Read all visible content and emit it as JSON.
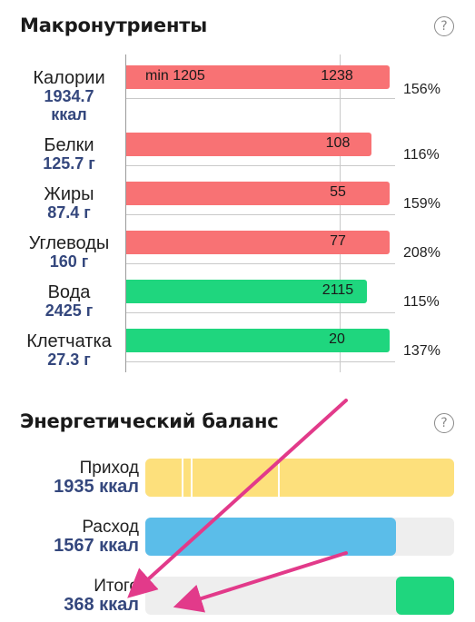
{
  "macros": {
    "title": "Макронутриенты",
    "help_icon": "?",
    "rows": [
      {
        "name": "Калории",
        "amount_line1": "1934.7",
        "amount_line2": "ккал",
        "min_label": "min 1205",
        "bar_value": "1238",
        "percent_label": "156%",
        "percent": 156,
        "color": "#f87274"
      },
      {
        "name": "Белки",
        "amount_line1": "125.7 г",
        "bar_value": "108",
        "percent_label": "116%",
        "percent": 116,
        "color": "#f87274"
      },
      {
        "name": "Жиры",
        "amount_line1": "87.4 г",
        "bar_value": "55",
        "percent_label": "159%",
        "percent": 159,
        "color": "#f87274"
      },
      {
        "name": "Углеводы",
        "amount_line1": "160 г",
        "bar_value": "77",
        "percent_label": "208%",
        "percent": 208,
        "color": "#f87274"
      },
      {
        "name": "Вода",
        "amount_line1": "2425 г",
        "bar_value": "2115",
        "percent_label": "115%",
        "percent": 115,
        "color": "#1fd67e"
      },
      {
        "name": "Клетчатка",
        "amount_line1": "27.3 г",
        "bar_value": "20",
        "percent_label": "137%",
        "percent": 137,
        "color": "#1fd67e"
      }
    ]
  },
  "energy": {
    "title": "Энергетический баланс",
    "help_icon": "?",
    "rows": [
      {
        "label": "Приход",
        "amount": "1935 ккал",
        "fill_fraction": 1.0,
        "color": "#fde07c"
      },
      {
        "label": "Расход",
        "amount": "1567 ккал",
        "fill_fraction": 0.81,
        "color": "#5bbde9"
      },
      {
        "label": "Итого",
        "amount": "368 ккал",
        "fill_fraction": 0.19,
        "color": "#1fd67e"
      }
    ]
  },
  "annotation_color": "#e23a8a"
}
